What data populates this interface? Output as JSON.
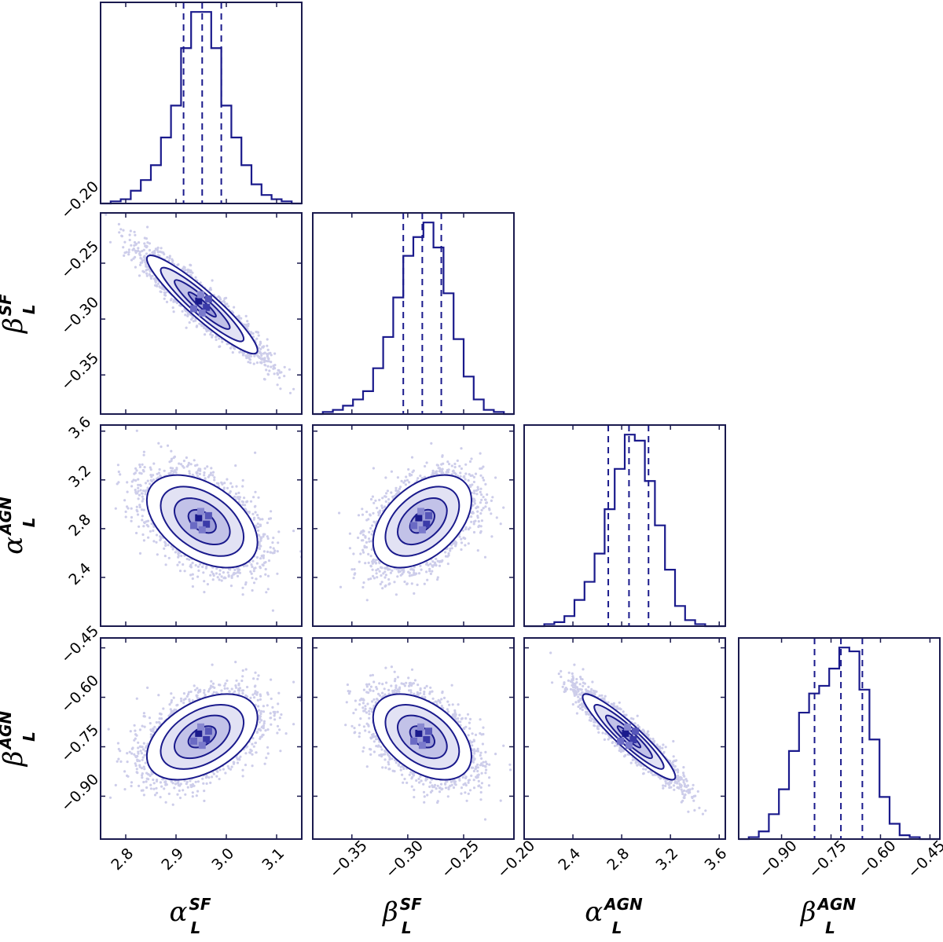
{
  "chart_data": {
    "type": "corner",
    "title": "",
    "colors": {
      "series": "#1a1a8c",
      "dashed": "#1a1a8c",
      "frame": "#1a1a4e",
      "fill": "#4b4bb5"
    },
    "parameters": [
      {
        "symbol": "α",
        "subscript": "L",
        "superscript": "SF",
        "range": [
          2.75,
          3.15
        ],
        "ticks": [
          "2.8",
          "2.9",
          "3.0",
          "3.1"
        ],
        "tick_values": [
          2.8,
          2.9,
          3.0,
          3.1
        ],
        "quantiles": [
          2.915,
          2.952,
          2.99
        ],
        "histogram_bins": [
          2.75,
          2.77,
          2.79,
          2.81,
          2.83,
          2.85,
          2.87,
          2.89,
          2.91,
          2.93,
          2.95,
          2.97,
          2.99,
          3.01,
          3.03,
          3.05,
          3.07,
          3.09,
          3.11,
          3.13,
          3.15
        ],
        "histogram_counts": [
          0,
          1,
          2,
          6,
          11,
          18,
          31,
          46,
          73,
          90,
          90,
          73,
          46,
          31,
          18,
          9,
          4,
          2,
          1,
          0
        ]
      },
      {
        "symbol": "β",
        "subscript": "L",
        "superscript": "SF",
        "range": [
          -0.385,
          -0.205
        ],
        "ticks": [
          "−0.35",
          "−0.30",
          "−0.25",
          "−0.20"
        ],
        "tick_values": [
          -0.35,
          -0.3,
          -0.25,
          -0.2
        ],
        "y_ticks": [
          "−0.35",
          "−0.30",
          "−0.25",
          "−0.20"
        ],
        "quantiles": [
          -0.304,
          -0.287,
          -0.27
        ],
        "histogram_bins": [
          -0.385,
          -0.376,
          -0.367,
          -0.358,
          -0.349,
          -0.34,
          -0.331,
          -0.322,
          -0.313,
          -0.304,
          -0.295,
          -0.286,
          -0.277,
          -0.268,
          -0.259,
          -0.25,
          -0.241,
          -0.232,
          -0.223,
          -0.214,
          -0.205
        ],
        "histogram_counts": [
          0,
          1,
          2,
          4,
          7,
          11,
          22,
          37,
          56,
          76,
          85,
          92,
          80,
          58,
          36,
          18,
          7,
          2,
          1,
          0
        ]
      },
      {
        "symbol": "α",
        "subscript": "L",
        "superscript": "AGN",
        "range": [
          2.0,
          3.65
        ],
        "ticks": [
          "2.4",
          "2.8",
          "3.2",
          "3.6"
        ],
        "tick_values": [
          2.4,
          2.8,
          3.2,
          3.6
        ],
        "quantiles": [
          2.69,
          2.86,
          3.02
        ],
        "histogram_bins": [
          2.0,
          2.0825,
          2.165,
          2.2475,
          2.33,
          2.4125,
          2.495,
          2.5775,
          2.66,
          2.7425,
          2.825,
          2.9075,
          2.99,
          3.0725,
          3.155,
          3.2375,
          3.32,
          3.4025,
          3.485,
          3.5675,
          3.65
        ],
        "histogram_counts": [
          0,
          0,
          1,
          2,
          5,
          13,
          22,
          36,
          58,
          78,
          95,
          92,
          72,
          50,
          28,
          10,
          3,
          1,
          0,
          0
        ]
      },
      {
        "symbol": "β",
        "subscript": "L",
        "superscript": "AGN",
        "range": [
          -1.03,
          -0.42
        ],
        "ticks": [
          "−0.90",
          "−0.75",
          "−0.60",
          "−0.45"
        ],
        "tick_values": [
          -0.9,
          -0.75,
          -0.6,
          -0.45
        ],
        "quantiles": [
          -0.8,
          -0.72,
          -0.655
        ],
        "histogram_bins": [
          -1.03,
          -0.9995,
          -0.969,
          -0.9385,
          -0.908,
          -0.8775,
          -0.847,
          -0.8165,
          -0.786,
          -0.7555,
          -0.725,
          -0.6945,
          -0.664,
          -0.6335,
          -0.603,
          -0.5725,
          -0.542,
          -0.5115,
          -0.481,
          -0.4505,
          -0.42
        ],
        "histogram_counts": [
          0,
          1,
          4,
          13,
          26,
          46,
          66,
          76,
          80,
          89,
          100,
          98,
          78,
          52,
          22,
          8,
          2,
          1,
          0,
          0
        ]
      }
    ],
    "correlations": [
      [
        1,
        -0.93,
        -0.45,
        0.45
      ],
      [
        -0.93,
        1,
        0.45,
        -0.45
      ],
      [
        -0.45,
        0.45,
        1,
        -0.93
      ],
      [
        0.45,
        -0.45,
        -0.93,
        1
      ]
    ],
    "sigmas": [
      0.055,
      0.022,
      0.19,
      0.065
    ],
    "means": [
      2.952,
      -0.287,
      2.86,
      -0.72
    ],
    "left_labels": [
      {
        "row": 1,
        "symbol": "β",
        "subscript": "L",
        "superscript": "SF"
      },
      {
        "row": 2,
        "symbol": "α",
        "subscript": "L",
        "superscript": "AGN"
      },
      {
        "row": 3,
        "symbol": "β",
        "subscript": "L",
        "superscript": "AGN"
      }
    ],
    "left_ticks": [
      {
        "row": 0,
        "ticks": [
          "−0.20"
        ]
      },
      {
        "row": 1,
        "ticks": [
          "−0.25",
          "−0.30",
          "−0.35"
        ]
      },
      {
        "row": 2,
        "ticks": [
          "3.6",
          "3.2",
          "2.8",
          "2.4"
        ]
      },
      {
        "row": 3,
        "ticks": [
          "−0.45",
          "−0.60",
          "−0.75",
          "−0.90"
        ]
      }
    ]
  }
}
